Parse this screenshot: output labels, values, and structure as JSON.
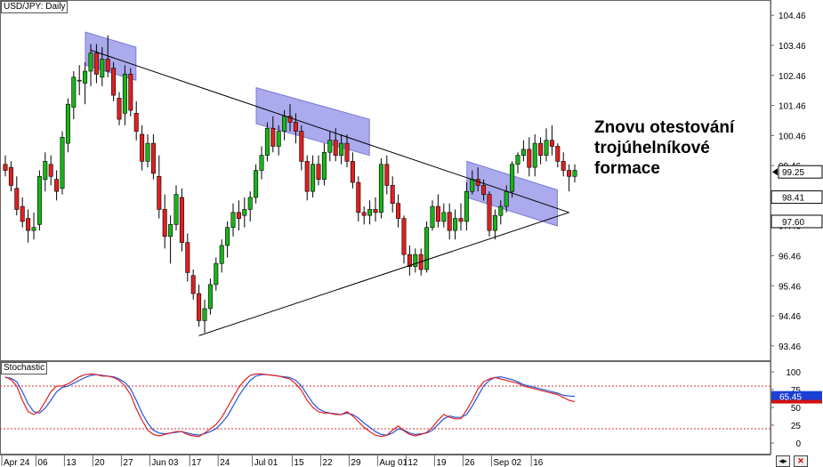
{
  "chart_data": [
    {
      "type": "candlestick",
      "title": "USD/JPY: Daily",
      "annotation": "Znovu otestování\ntrojúhelníkové\nformace",
      "price_axis": {
        "ticks": [
          "104.46",
          "103.46",
          "102.46",
          "101.46",
          "100.46",
          "99.46",
          "98.46",
          "97.46",
          "96.46",
          "95.46",
          "94.46",
          "93.46"
        ],
        "ylim": [
          93.1,
          104.85
        ]
      },
      "price_labels": [
        {
          "text": "99.25",
          "value": 99.25,
          "style": "current"
        },
        {
          "text": "98.41",
          "value": 98.41,
          "style": "plain"
        },
        {
          "text": "97.60",
          "value": 97.6,
          "style": "plain"
        }
      ],
      "date_labels": [
        "Apr 24",
        "06",
        "13",
        "20",
        "27",
        "Jun 03",
        "17",
        "24",
        "Jul 01",
        "15",
        "22",
        "29",
        "Aug 01",
        "12",
        "19",
        "26",
        "Sep 02",
        "16"
      ],
      "colors": {
        "up": "#19b419",
        "down": "#e02020",
        "highlight": "#9b9bea",
        "trendline": "#000000",
        "stoch_k": "#2255dd",
        "stoch_d": "#e02020",
        "level": "#d03030"
      },
      "candles": [
        [
          99.5,
          99.8,
          99.1,
          99.3
        ],
        [
          99.4,
          99.6,
          98.6,
          98.8
        ],
        [
          98.7,
          99.1,
          97.8,
          98.0
        ],
        [
          98.1,
          98.4,
          97.4,
          97.6
        ],
        [
          97.7,
          98.0,
          96.9,
          97.3
        ],
        [
          97.3,
          97.9,
          97.0,
          97.4
        ],
        [
          97.5,
          99.3,
          97.3,
          99.1
        ],
        [
          99.0,
          99.9,
          98.6,
          99.6
        ],
        [
          99.5,
          99.8,
          98.8,
          99.1
        ],
        [
          99.0,
          99.3,
          98.3,
          98.6
        ],
        [
          98.7,
          100.6,
          98.5,
          100.4
        ],
        [
          100.2,
          101.7,
          99.9,
          101.5
        ],
        [
          101.4,
          102.6,
          101.0,
          102.4
        ],
        [
          102.3,
          102.8,
          101.8,
          102.3
        ],
        [
          102.2,
          102.9,
          101.5,
          102.6
        ],
        [
          102.6,
          103.5,
          102.1,
          103.2
        ],
        [
          103.2,
          103.5,
          102.2,
          102.5
        ],
        [
          102.4,
          103.4,
          102.1,
          103.0
        ],
        [
          103.0,
          103.8,
          102.4,
          102.6
        ],
        [
          102.7,
          102.9,
          101.6,
          101.8
        ],
        [
          101.7,
          101.9,
          100.8,
          101.0
        ],
        [
          101.2,
          102.8,
          100.8,
          102.5
        ],
        [
          102.5,
          102.7,
          101.1,
          101.3
        ],
        [
          101.2,
          101.6,
          100.3,
          100.6
        ],
        [
          100.5,
          100.8,
          99.3,
          99.6
        ],
        [
          99.6,
          100.5,
          99.4,
          100.2
        ],
        [
          100.2,
          100.5,
          99.0,
          99.2
        ],
        [
          99.1,
          99.8,
          97.7,
          98.0
        ],
        [
          98.0,
          98.5,
          96.7,
          97.1
        ],
        [
          97.1,
          97.8,
          96.2,
          97.5
        ],
        [
          97.5,
          98.8,
          97.3,
          98.5
        ],
        [
          98.4,
          98.7,
          96.6,
          96.9
        ],
        [
          96.9,
          97.2,
          95.6,
          95.9
        ],
        [
          95.8,
          96.0,
          95.0,
          95.2
        ],
        [
          95.2,
          95.5,
          94.1,
          94.3
        ],
        [
          94.3,
          95.0,
          93.9,
          94.7
        ],
        [
          94.7,
          95.7,
          94.5,
          95.5
        ],
        [
          95.5,
          96.4,
          95.3,
          96.2
        ],
        [
          96.2,
          97.0,
          95.9,
          96.8
        ],
        [
          96.8,
          97.6,
          96.4,
          97.4
        ],
        [
          97.4,
          98.2,
          97.1,
          97.9
        ],
        [
          97.9,
          98.3,
          97.3,
          97.7
        ],
        [
          97.8,
          98.4,
          97.4,
          98.0
        ],
        [
          98.0,
          98.6,
          97.6,
          98.4
        ],
        [
          98.4,
          99.5,
          98.2,
          99.3
        ],
        [
          99.3,
          100.1,
          99.0,
          99.8
        ],
        [
          99.8,
          100.9,
          99.6,
          100.7
        ],
        [
          100.7,
          101.1,
          99.9,
          100.1
        ],
        [
          100.1,
          100.8,
          99.8,
          100.6
        ],
        [
          100.6,
          101.3,
          100.3,
          101.1
        ],
        [
          101.1,
          101.5,
          100.6,
          100.9
        ],
        [
          100.9,
          101.2,
          100.2,
          100.6
        ],
        [
          100.6,
          100.8,
          99.3,
          99.6
        ],
        [
          99.6,
          99.8,
          98.3,
          98.6
        ],
        [
          98.6,
          99.8,
          98.4,
          99.5
        ],
        [
          99.5,
          99.8,
          98.8,
          99.0
        ],
        [
          99.0,
          100.2,
          98.8,
          99.9
        ],
        [
          99.9,
          100.6,
          99.6,
          100.3
        ],
        [
          100.3,
          100.7,
          99.6,
          99.8
        ],
        [
          99.8,
          100.5,
          99.5,
          100.2
        ],
        [
          100.2,
          100.5,
          99.4,
          99.6
        ],
        [
          99.6,
          99.9,
          98.7,
          98.9
        ],
        [
          98.9,
          99.1,
          97.6,
          97.9
        ],
        [
          97.9,
          98.1,
          97.5,
          97.8
        ],
        [
          97.8,
          98.3,
          97.5,
          98.0
        ],
        [
          98.0,
          98.4,
          97.6,
          97.9
        ],
        [
          97.9,
          99.7,
          97.7,
          99.5
        ],
        [
          99.5,
          99.8,
          98.5,
          98.8
        ],
        [
          98.8,
          99.1,
          97.9,
          98.2
        ],
        [
          98.2,
          98.5,
          97.4,
          97.7
        ],
        [
          97.7,
          97.8,
          96.2,
          96.5
        ],
        [
          96.5,
          96.8,
          95.8,
          96.1
        ],
        [
          96.1,
          96.7,
          95.9,
          96.5
        ],
        [
          96.5,
          96.7,
          95.8,
          96.0
        ],
        [
          96.0,
          97.6,
          95.9,
          97.4
        ],
        [
          97.4,
          98.3,
          97.3,
          98.1
        ],
        [
          98.1,
          98.5,
          97.4,
          97.6
        ],
        [
          97.6,
          98.2,
          97.4,
          97.9
        ],
        [
          97.9,
          98.2,
          97.0,
          97.3
        ],
        [
          97.3,
          98.0,
          97.0,
          97.7
        ],
        [
          97.7,
          98.2,
          97.3,
          97.6
        ],
        [
          97.6,
          98.9,
          97.3,
          98.6
        ],
        [
          98.6,
          99.3,
          98.5,
          99.0
        ],
        [
          99.0,
          99.4,
          98.6,
          98.8
        ],
        [
          98.8,
          99.0,
          98.3,
          98.5
        ],
        [
          98.5,
          98.6,
          97.1,
          97.3
        ],
        [
          97.3,
          98.0,
          97.0,
          97.8
        ],
        [
          97.8,
          98.3,
          97.5,
          98.1
        ],
        [
          98.1,
          98.8,
          97.9,
          98.6
        ],
        [
          98.6,
          99.6,
          98.4,
          99.5
        ],
        [
          99.5,
          99.9,
          99.2,
          99.8
        ],
        [
          99.8,
          100.3,
          99.6,
          100.0
        ],
        [
          100.0,
          100.4,
          99.1,
          99.4
        ],
        [
          99.4,
          100.5,
          99.1,
          100.2
        ],
        [
          100.2,
          100.4,
          99.5,
          99.8
        ],
        [
          99.8,
          100.7,
          99.6,
          100.3
        ],
        [
          100.3,
          100.8,
          99.8,
          100.1
        ],
        [
          100.1,
          100.2,
          99.4,
          99.6
        ],
        [
          99.6,
          99.9,
          99.1,
          99.3
        ],
        [
          99.3,
          99.5,
          98.6,
          99.1
        ],
        [
          99.1,
          99.5,
          98.9,
          99.3
        ]
      ],
      "trendlines": [
        {
          "from": [
            15,
            103.3
          ],
          "to": [
            99,
            97.9
          ]
        },
        {
          "from": [
            34,
            93.8
          ],
          "to": [
            99,
            97.9
          ]
        }
      ],
      "highlight_channels": [
        {
          "from": [
            15,
            103.35
          ],
          "to": [
            22,
            102.85
          ],
          "width": 0.55
        },
        {
          "from": [
            45,
            101.45
          ],
          "to": [
            63,
            100.4
          ],
          "width": 0.6
        },
        {
          "from": [
            82,
            99.0
          ],
          "to": [
            96,
            98.05
          ],
          "width": 0.6
        }
      ]
    },
    {
      "type": "line",
      "title": "Stochastic",
      "y_ticks": [
        "100",
        "75",
        "50",
        "25",
        "0"
      ],
      "ylim": [
        0,
        100
      ],
      "levels": [
        80,
        20
      ],
      "value_labels": [
        {
          "text": "65.45",
          "value": 65.45,
          "style": "blue"
        },
        {
          "text": "",
          "value": 58,
          "style": "red"
        }
      ],
      "series": [
        {
          "values": [
            92,
            91,
            86,
            72,
            55,
            44,
            42,
            49,
            60,
            72,
            78,
            80,
            84,
            88,
            92,
            95,
            96,
            95,
            94,
            93,
            90,
            85,
            76,
            60,
            42,
            28,
            18,
            14,
            13,
            14,
            15,
            16,
            14,
            12,
            11,
            13,
            16,
            20,
            28,
            38,
            52,
            66,
            78,
            88,
            94,
            96,
            96,
            95,
            94,
            93,
            92,
            88,
            80,
            68,
            56,
            48,
            44,
            42,
            41,
            40,
            42,
            40,
            35,
            28,
            22,
            16,
            12,
            11,
            14,
            20,
            18,
            14,
            12,
            13,
            14,
            18,
            26,
            34,
            38,
            36,
            36,
            40,
            52,
            66,
            80,
            88,
            92,
            93,
            91,
            89,
            86,
            82,
            80,
            78,
            76,
            74,
            72,
            70,
            67,
            66,
            65.45
          ]
        },
        {
          "values": [
            93,
            89,
            80,
            60,
            44,
            40,
            45,
            58,
            72,
            80,
            80,
            83,
            88,
            93,
            96,
            97,
            96,
            94,
            94,
            92,
            88,
            80,
            68,
            48,
            32,
            18,
            12,
            10,
            12,
            14,
            16,
            16,
            12,
            10,
            9,
            14,
            20,
            26,
            36,
            50,
            64,
            78,
            88,
            95,
            97,
            97,
            96,
            95,
            94,
            92,
            90,
            83,
            74,
            60,
            50,
            44,
            42,
            42,
            40,
            40,
            44,
            38,
            30,
            22,
            16,
            11,
            9,
            11,
            18,
            24,
            17,
            12,
            10,
            12,
            15,
            22,
            32,
            40,
            36,
            34,
            34,
            46,
            60,
            76,
            86,
            90,
            92,
            90,
            88,
            86,
            84,
            80,
            78,
            76,
            74,
            72,
            70,
            68,
            64,
            60,
            58
          ]
        }
      ]
    }
  ]
}
